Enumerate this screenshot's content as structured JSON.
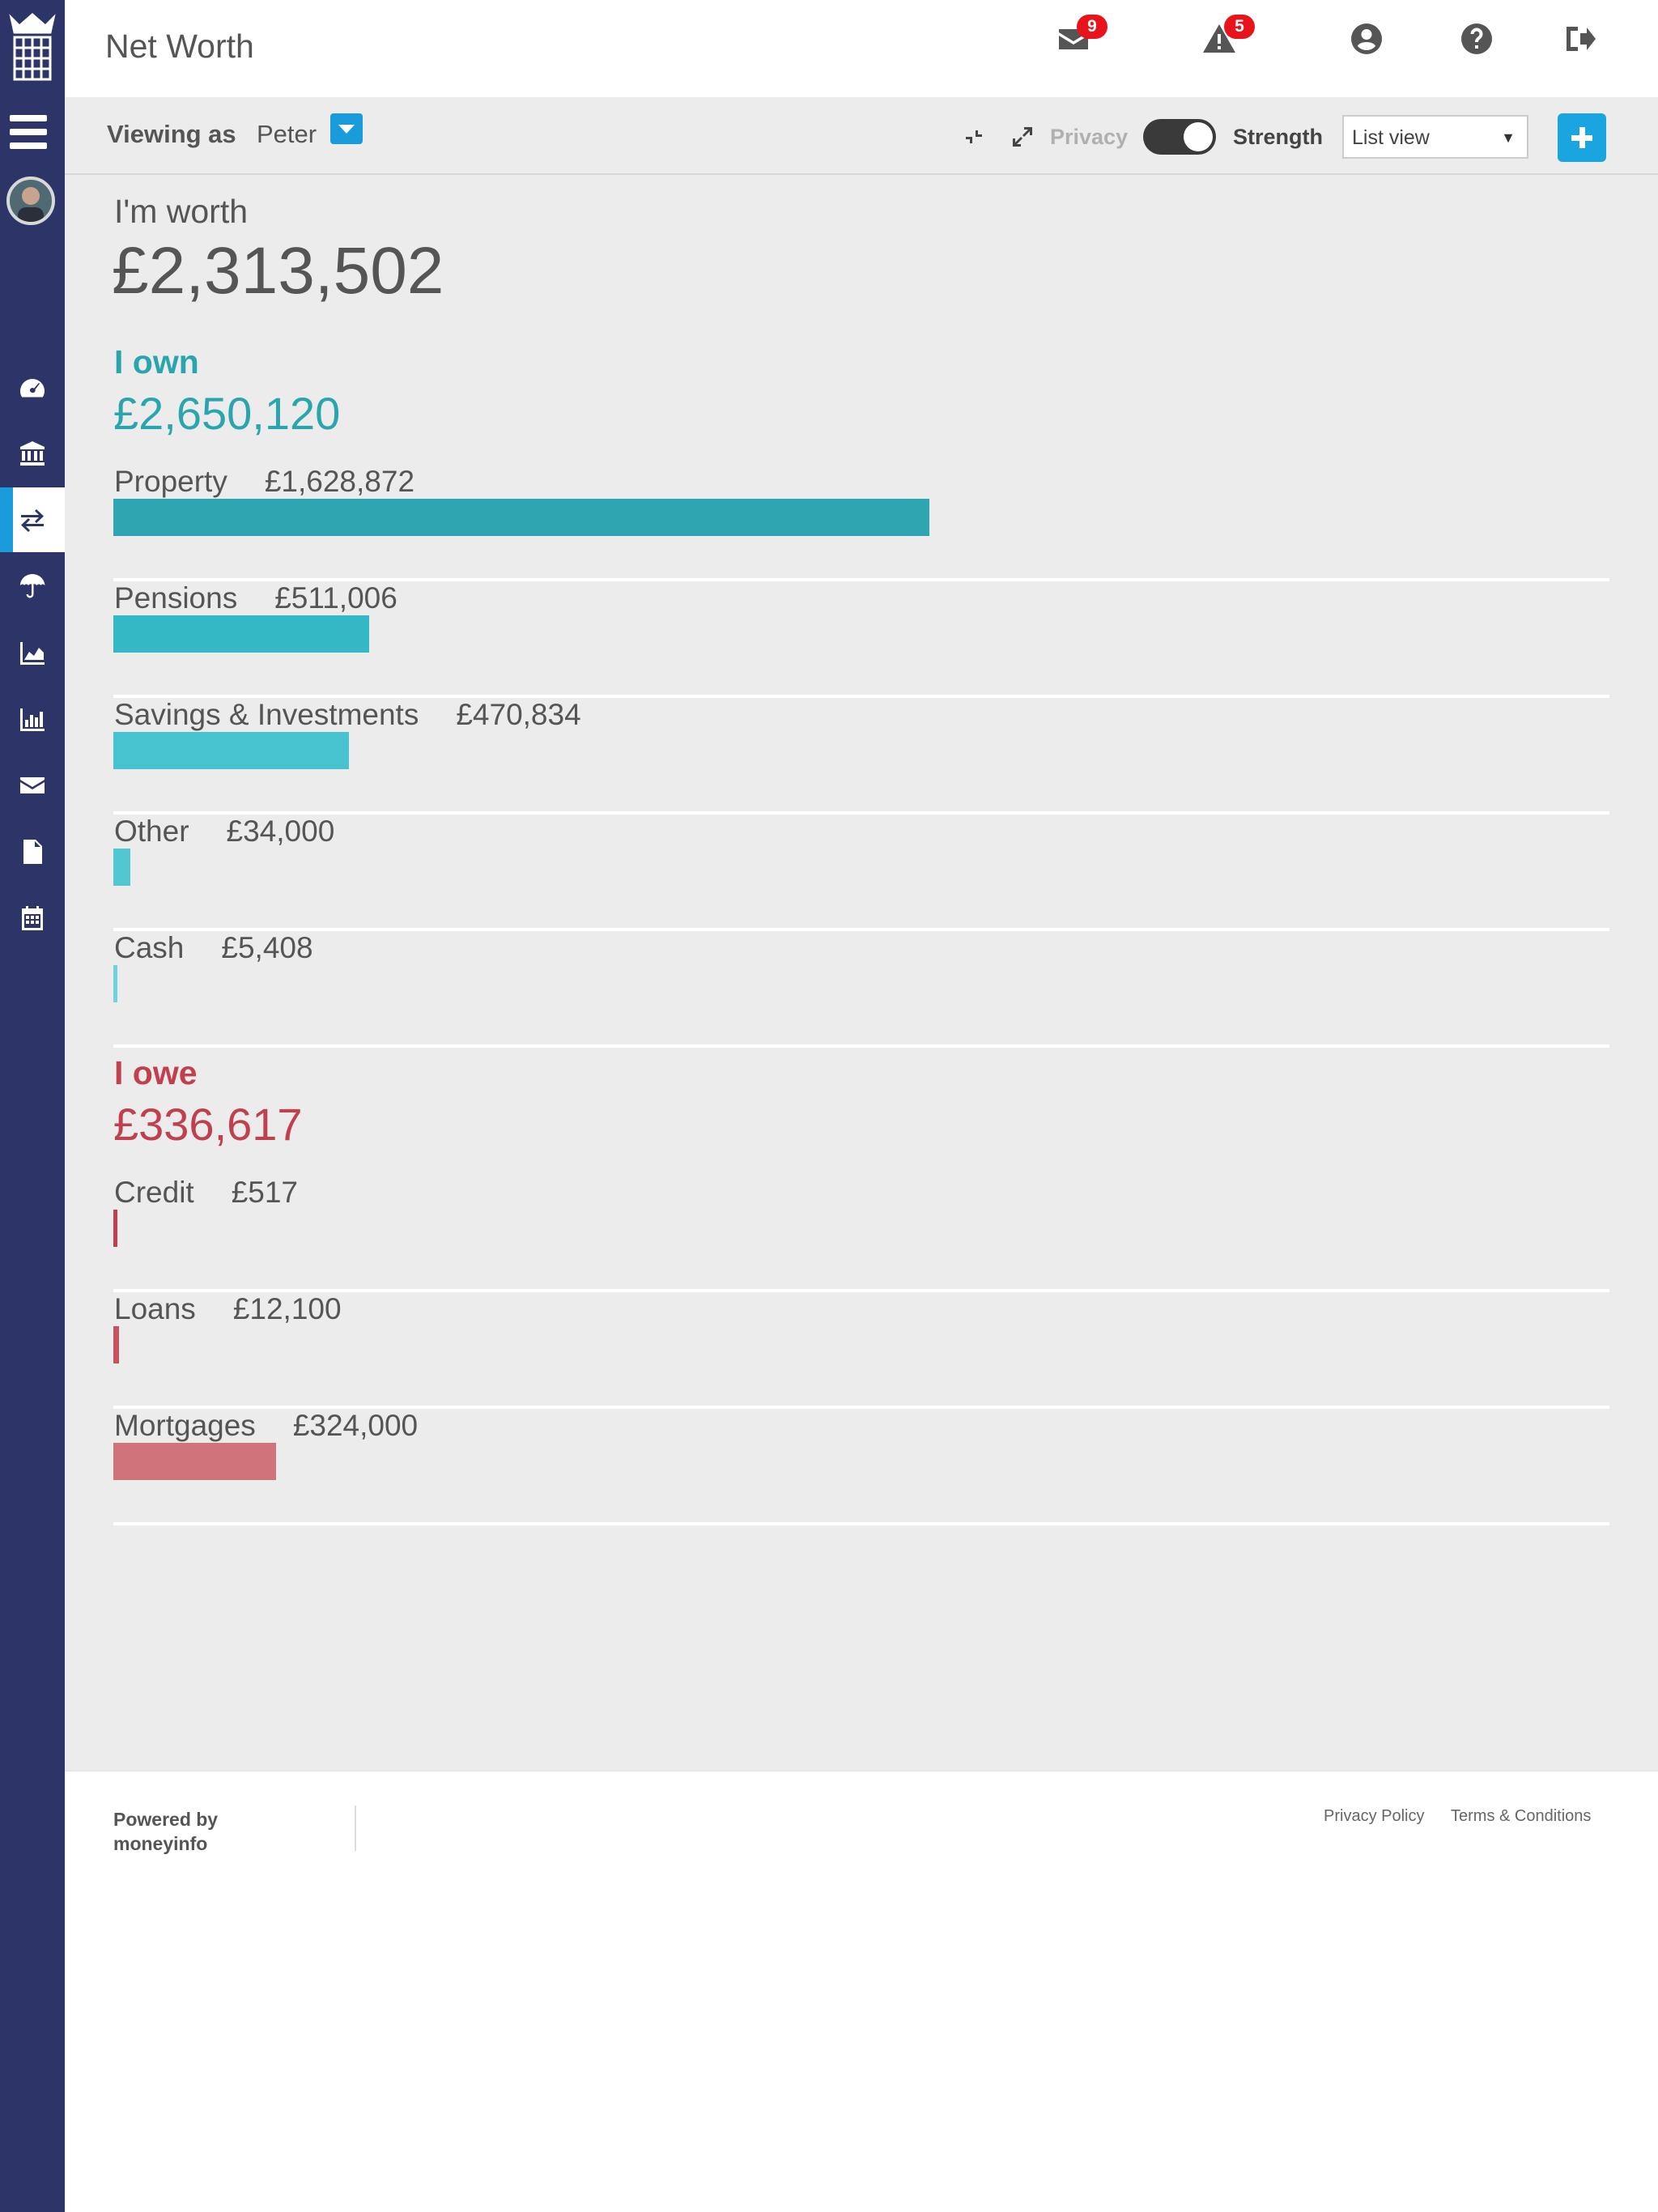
{
  "app": {
    "title": "Net Worth"
  },
  "header": {
    "messages_count": "9",
    "alerts_count": "5"
  },
  "toolbar": {
    "viewing_label": "Viewing as",
    "viewing_name": "Peter",
    "privacy_label": "Privacy",
    "privacy_on": true,
    "strength_label": "Strength",
    "view_select": "List view"
  },
  "summary": {
    "worth_label": "I'm worth",
    "worth_value": "£2,313,502"
  },
  "own": {
    "heading": "I own",
    "total": "£2,650,120",
    "color": "#2ba5ad",
    "items": [
      {
        "label": "Property",
        "value": "£1,628,872",
        "amount": 1628872,
        "color": "#2ea5b0"
      },
      {
        "label": "Pensions",
        "value": "£511,006",
        "amount": 511006,
        "color": "#34b8c6"
      },
      {
        "label": "Savings & Investments",
        "value": "£470,834",
        "amount": 470834,
        "color": "#46c3cf"
      },
      {
        "label": "Other",
        "value": "£34,000",
        "amount": 34000,
        "color": "#50c7d1"
      },
      {
        "label": "Cash",
        "value": "£5,408",
        "amount": 5408,
        "color": "#6ed3dc"
      }
    ]
  },
  "owe": {
    "heading": "I owe",
    "total": "£336,617",
    "color": "#c0404d",
    "items": [
      {
        "label": "Credit",
        "value": "£517",
        "amount": 517,
        "color": "#c0404d"
      },
      {
        "label": "Loans",
        "value": "£12,100",
        "amount": 12100,
        "color": "#c8525e"
      },
      {
        "label": "Mortgages",
        "value": "£324,000",
        "amount": 324000,
        "color": "#d1737b"
      }
    ]
  },
  "footer": {
    "powered_by": "Powered by moneyinfo",
    "privacy_policy": "Privacy Policy",
    "terms": "Terms & Conditions"
  },
  "icons": {
    "sidebar": [
      "dashboard-icon",
      "bank-icon",
      "transfer-icon",
      "umbrella-icon",
      "area-chart-icon",
      "bar-chart-icon",
      "envelope-icon",
      "document-icon",
      "calendar-icon"
    ],
    "header": [
      "envelope-icon",
      "warning-icon",
      "user-icon",
      "help-icon",
      "sign-out-icon"
    ]
  }
}
